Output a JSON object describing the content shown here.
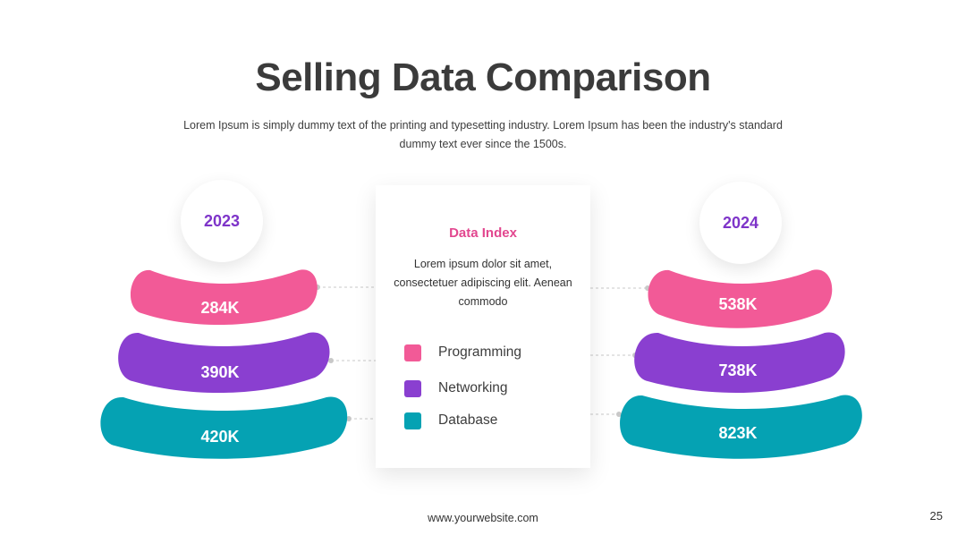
{
  "slide": {
    "title": "Selling Data Comparison",
    "subtitle": "Lorem Ipsum is simply dummy text of the printing and typesetting industry. Lorem Ipsum has been the industry's standard dummy text ever since the 1500s.",
    "footer": "www.yourwebsite.com",
    "page_number": "25"
  },
  "years": {
    "left": "2023",
    "right": "2024"
  },
  "card": {
    "title": "Data Index",
    "body": "Lorem ipsum dolor sit amet, consectetuer adipiscing elit. Aenean commodo"
  },
  "categories": [
    {
      "label": "Programming",
      "color": "#f25a97"
    },
    {
      "label": "Networking",
      "color": "#8a3fd0"
    },
    {
      "label": "Database",
      "color": "#05a2b3"
    }
  ],
  "values_2023": [
    "284K",
    "390K",
    "420K"
  ],
  "values_2024": [
    "538K",
    "738K",
    "823K"
  ],
  "colors": {
    "accent_purple": "#7e34c9",
    "title_pink": "#e2478f",
    "connector": "#c8c8c8"
  }
}
